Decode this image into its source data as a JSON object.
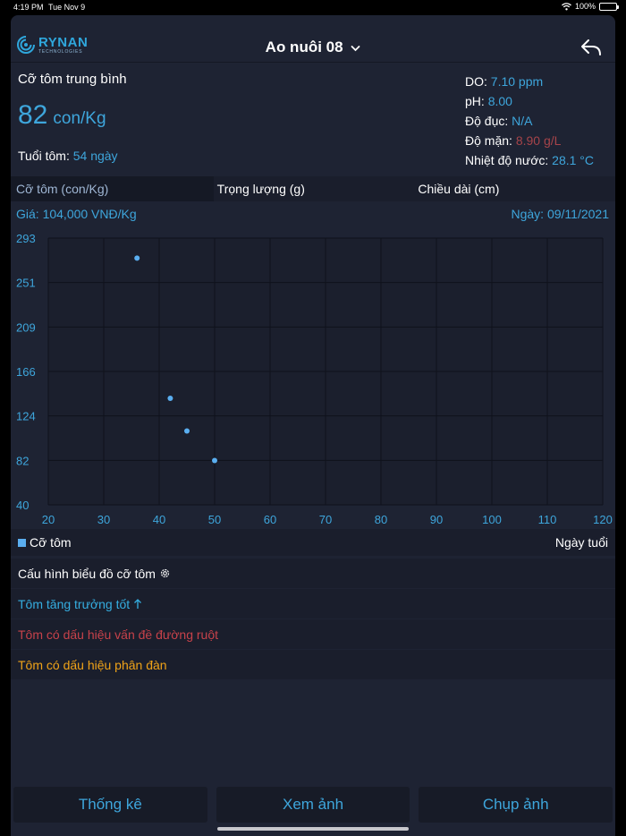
{
  "status": {
    "time": "4:19 PM",
    "date": "Tue Nov 9",
    "battery": "100%",
    "battery_level": 1.0
  },
  "nav": {
    "title": "Ao nuôi 08",
    "logo_brand": "RYNAN",
    "logo_sub": "TECHNOLOGIES"
  },
  "info": {
    "size_label": "Cỡ tôm trung bình",
    "size_value": "82",
    "size_unit": "con/Kg",
    "age_label": "Tuổi tôm:",
    "age_value": "54 ngày",
    "params": [
      {
        "label": "DO:",
        "value": "7.10 ppm",
        "color": "#3ea6dc"
      },
      {
        "label": "pH:",
        "value": "8.00",
        "color": "#3ea6dc"
      },
      {
        "label": "Độ đục:",
        "value": "N/A",
        "color": "#3ea6dc"
      },
      {
        "label": "Độ mặn:",
        "value": "8.90 g/L",
        "color": "#a6444a"
      },
      {
        "label": "Nhiệt độ nước:",
        "value": "28.1 °C",
        "color": "#3ea6dc"
      }
    ]
  },
  "tabs": [
    "Cỡ tôm (con/Kg)",
    "Trọng lượng (g)",
    "Chiều dài (cm)"
  ],
  "chart_header": {
    "price": "Giá: 104,000 VNĐ/Kg",
    "date": "Ngày: 09/11/2021"
  },
  "chart_data": {
    "type": "scatter",
    "x": [
      36,
      42,
      45,
      50
    ],
    "y": [
      274,
      141,
      110,
      82
    ],
    "xlim": [
      20,
      120
    ],
    "ylim": [
      40,
      293
    ],
    "xticks": [
      "20",
      "30",
      "40",
      "50",
      "60",
      "70",
      "80",
      "90",
      "100",
      "110",
      "120"
    ],
    "yticks": [
      "293",
      "251",
      "209",
      "166",
      "124",
      "82",
      "40"
    ],
    "series_name": "Cỡ tôm",
    "xlabel": "Ngày tuổi",
    "grid": true,
    "color": "#5aaef0"
  },
  "legend": {
    "series": "Cỡ tôm",
    "xlabel": "Ngày tuổi"
  },
  "list": {
    "config": "Cấu hình biểu đồ cỡ tôm",
    "good": "Tôm tăng trưởng tốt",
    "gut": "Tôm có dấu hiệu vấn đề đường ruột",
    "split": "Tôm có dấu hiệu phân đàn"
  },
  "buttons": {
    "stats": "Thống kê",
    "view": "Xem ảnh",
    "capture": "Chụp ảnh"
  }
}
